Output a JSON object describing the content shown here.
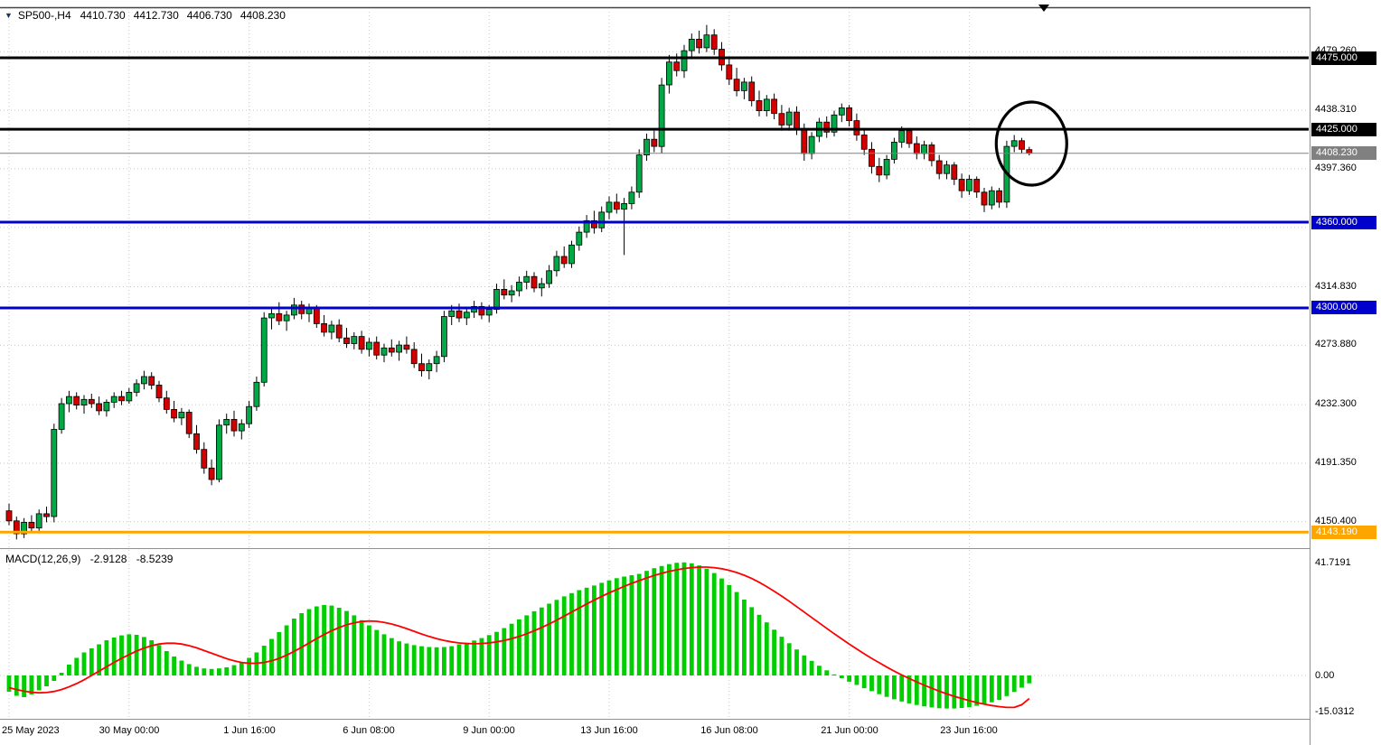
{
  "header": {
    "menu_icon": "▼",
    "symbol": "SP500-,H4",
    "open": "4410.730",
    "high": "4412.730",
    "low": "4406.730",
    "close": "4408.230"
  },
  "colors": {
    "up": "#00A846",
    "down": "#D40000",
    "wick": "#000000",
    "hist": "#00CE00",
    "signal": "#FF0000",
    "grid": "#C8C8C8",
    "current": "#808080",
    "separator": "#909090",
    "bg": "#FFFFFF"
  },
  "price_axis": {
    "ticks": [
      {
        "value": 4479.26,
        "label": "4479.260"
      },
      {
        "value": 4438.31,
        "label": "4438.310"
      },
      {
        "value": 4397.36,
        "label": "4397.360"
      },
      {
        "value": 4356.41,
        "label": ""
      },
      {
        "value": 4314.83,
        "label": "4314.830"
      },
      {
        "value": 4273.88,
        "label": "4273.880"
      },
      {
        "value": 4232.3,
        "label": "4232.300"
      },
      {
        "value": 4191.35,
        "label": "4191.350"
      },
      {
        "value": 4150.4,
        "label": "4150.400"
      }
    ],
    "badges": [
      {
        "value": 4475.0,
        "label": "4475.000",
        "bg": "#000000"
      },
      {
        "value": 4425.0,
        "label": "4425.000",
        "bg": "#000000"
      },
      {
        "value": 4408.23,
        "label": "4408.230",
        "bg": "#808080"
      },
      {
        "value": 4360.0,
        "label": "4360.000",
        "bg": "#0000CD"
      },
      {
        "value": 4300.0,
        "label": "4300.000",
        "bg": "#0000CD"
      },
      {
        "value": 4143.19,
        "label": "4143.190",
        "bg": "#FFA500"
      }
    ]
  },
  "macd_panel": {
    "label": "MACD(12,26,9)",
    "main_value": "-2.9128",
    "signal_value": "-8.5239",
    "axis": [
      {
        "value": 41.7191,
        "label": "41.7191"
      },
      {
        "value": 0,
        "label": "0.00"
      },
      {
        "value": -15.0312,
        "label": "-15.0312"
      }
    ]
  },
  "annotation": {
    "shape": "ellipse",
    "bar": 136.3,
    "price": 4415
  },
  "chart_data": {
    "type": "candlestick",
    "symbol": "SP500-",
    "timeframe": "H4",
    "price_range": [
      4136,
      4500
    ],
    "current_price": 4408.23,
    "hlines": [
      {
        "price": 4475.0,
        "color": "#000000",
        "width": 3
      },
      {
        "price": 4425.0,
        "color": "#000000",
        "width": 3
      },
      {
        "price": 4360.0,
        "color": "#0000CD",
        "width": 3
      },
      {
        "price": 4300.0,
        "color": "#0000CD",
        "width": 3
      },
      {
        "price": 4143.19,
        "color": "#FFA500",
        "width": 3
      }
    ],
    "time_labels": [
      {
        "bar": 0,
        "text": "25 May 2023"
      },
      {
        "bar": 16,
        "text": "30 May 00:00"
      },
      {
        "bar": 32,
        "text": "1 Jun 16:00"
      },
      {
        "bar": 48,
        "text": "6 Jun 08:00"
      },
      {
        "bar": 64,
        "text": "9 Jun 00:00"
      },
      {
        "bar": 80,
        "text": "13 Jun 16:00"
      },
      {
        "bar": 96,
        "text": "16 Jun 08:00"
      },
      {
        "bar": 112,
        "text": "21 Jun 00:00"
      },
      {
        "bar": 128,
        "text": "23 Jun 16:00"
      }
    ],
    "candles": [
      [
        4158,
        4163,
        4148,
        4151
      ],
      [
        4151,
        4154,
        4138,
        4142
      ],
      [
        4142,
        4153,
        4139,
        4150
      ],
      [
        4150,
        4155,
        4143,
        4146
      ],
      [
        4146,
        4159,
        4144,
        4156
      ],
      [
        4156,
        4161,
        4150,
        4154
      ],
      [
        4154,
        4219,
        4150,
        4215
      ],
      [
        4215,
        4237,
        4212,
        4233
      ],
      [
        4233,
        4242,
        4227,
        4238
      ],
      [
        4238,
        4241,
        4229,
        4232
      ],
      [
        4232,
        4239,
        4226,
        4236
      ],
      [
        4236,
        4240,
        4230,
        4233
      ],
      [
        4233,
        4238,
        4225,
        4228
      ],
      [
        4228,
        4236,
        4224,
        4234
      ],
      [
        4234,
        4241,
        4230,
        4238
      ],
      [
        4238,
        4242,
        4232,
        4235
      ],
      [
        4235,
        4244,
        4233,
        4241
      ],
      [
        4241,
        4250,
        4238,
        4247
      ],
      [
        4247,
        4256,
        4243,
        4252
      ],
      [
        4252,
        4255,
        4243,
        4246
      ],
      [
        4246,
        4249,
        4234,
        4237
      ],
      [
        4237,
        4242,
        4226,
        4229
      ],
      [
        4229,
        4235,
        4220,
        4223
      ],
      [
        4223,
        4230,
        4218,
        4227
      ],
      [
        4227,
        4229,
        4209,
        4212
      ],
      [
        4212,
        4218,
        4198,
        4201
      ],
      [
        4201,
        4206,
        4184,
        4188
      ],
      [
        4188,
        4194,
        4176,
        4180
      ],
      [
        4180,
        4222,
        4178,
        4218
      ],
      [
        4218,
        4226,
        4212,
        4222
      ],
      [
        4222,
        4228,
        4210,
        4214
      ],
      [
        4214,
        4222,
        4208,
        4219
      ],
      [
        4219,
        4235,
        4216,
        4231
      ],
      [
        4231,
        4252,
        4228,
        4248
      ],
      [
        4248,
        4297,
        4245,
        4293
      ],
      [
        4293,
        4300,
        4285,
        4296
      ],
      [
        4296,
        4304,
        4288,
        4291
      ],
      [
        4291,
        4298,
        4284,
        4295
      ],
      [
        4295,
        4307,
        4292,
        4302
      ],
      [
        4302,
        4305,
        4292,
        4296
      ],
      [
        4296,
        4303,
        4290,
        4300
      ],
      [
        4300,
        4302,
        4286,
        4289
      ],
      [
        4289,
        4295,
        4280,
        4283
      ],
      [
        4283,
        4291,
        4278,
        4288
      ],
      [
        4288,
        4292,
        4276,
        4279
      ],
      [
        4279,
        4286,
        4272,
        4275
      ],
      [
        4275,
        4283,
        4271,
        4280
      ],
      [
        4280,
        4284,
        4268,
        4271
      ],
      [
        4271,
        4279,
        4266,
        4276
      ],
      [
        4276,
        4280,
        4264,
        4267
      ],
      [
        4267,
        4275,
        4262,
        4272
      ],
      [
        4272,
        4278,
        4266,
        4269
      ],
      [
        4269,
        4277,
        4263,
        4274
      ],
      [
        4274,
        4280,
        4268,
        4271
      ],
      [
        4271,
        4276,
        4258,
        4261
      ],
      [
        4261,
        4268,
        4252,
        4256
      ],
      [
        4256,
        4264,
        4250,
        4261
      ],
      [
        4261,
        4270,
        4255,
        4266
      ],
      [
        4266,
        4298,
        4262,
        4294
      ],
      [
        4294,
        4302,
        4288,
        4298
      ],
      [
        4298,
        4303,
        4290,
        4293
      ],
      [
        4293,
        4300,
        4288,
        4297
      ],
      [
        4297,
        4305,
        4293,
        4301
      ],
      [
        4301,
        4304,
        4292,
        4295
      ],
      [
        4295,
        4302,
        4290,
        4299
      ],
      [
        4299,
        4317,
        4296,
        4313
      ],
      [
        4313,
        4320,
        4306,
        4309
      ],
      [
        4309,
        4316,
        4304,
        4312
      ],
      [
        4312,
        4322,
        4308,
        4318
      ],
      [
        4318,
        4326,
        4313,
        4322
      ],
      [
        4322,
        4325,
        4311,
        4314
      ],
      [
        4314,
        4321,
        4308,
        4317
      ],
      [
        4317,
        4330,
        4314,
        4326
      ],
      [
        4326,
        4340,
        4322,
        4336
      ],
      [
        4336,
        4343,
        4328,
        4331
      ],
      [
        4331,
        4347,
        4328,
        4344
      ],
      [
        4344,
        4357,
        4340,
        4353
      ],
      [
        4353,
        4365,
        4349,
        4361
      ],
      [
        4361,
        4368,
        4352,
        4356
      ],
      [
        4356,
        4371,
        4353,
        4367
      ],
      [
        4367,
        4378,
        4362,
        4374
      ],
      [
        4374,
        4380,
        4366,
        4369
      ],
      [
        4369,
        4377,
        4337,
        4373
      ],
      [
        4373,
        4385,
        4369,
        4381
      ],
      [
        4381,
        4411,
        4377,
        4407
      ],
      [
        4407,
        4422,
        4403,
        4418
      ],
      [
        4418,
        4424,
        4409,
        4413
      ],
      [
        4413,
        4461,
        4408,
        4456
      ],
      [
        4456,
        4477,
        4450,
        4472
      ],
      [
        4472,
        4478,
        4462,
        4466
      ],
      [
        4466,
        4484,
        4461,
        4480
      ],
      [
        4480,
        4492,
        4474,
        4488
      ],
      [
        4488,
        4494,
        4478,
        4482
      ],
      [
        4482,
        4498,
        4479,
        4491
      ],
      [
        4491,
        4495,
        4477,
        4481
      ],
      [
        4481,
        4486,
        4466,
        4470
      ],
      [
        4470,
        4476,
        4456,
        4460
      ],
      [
        4460,
        4468,
        4448,
        4452
      ],
      [
        4452,
        4461,
        4446,
        4458
      ],
      [
        4458,
        4462,
        4441,
        4445
      ],
      [
        4445,
        4452,
        4434,
        4438
      ],
      [
        4438,
        4449,
        4434,
        4446
      ],
      [
        4446,
        4450,
        4432,
        4436
      ],
      [
        4436,
        4442,
        4424,
        4428
      ],
      [
        4428,
        4440,
        4424,
        4437
      ],
      [
        4437,
        4441,
        4421,
        4425
      ],
      [
        4425,
        4429,
        4403,
        4408
      ],
      [
        4408,
        4423,
        4404,
        4420
      ],
      [
        4420,
        4433,
        4416,
        4430
      ],
      [
        4430,
        4434,
        4419,
        4423
      ],
      [
        4423,
        4438,
        4420,
        4435
      ],
      [
        4435,
        4443,
        4430,
        4440
      ],
      [
        4440,
        4442,
        4427,
        4431
      ],
      [
        4431,
        4436,
        4417,
        4421
      ],
      [
        4421,
        4426,
        4407,
        4411
      ],
      [
        4411,
        4416,
        4394,
        4399
      ],
      [
        4399,
        4405,
        4388,
        4393
      ],
      [
        4393,
        4407,
        4390,
        4404
      ],
      [
        4404,
        4419,
        4401,
        4416
      ],
      [
        4416,
        4427,
        4412,
        4424
      ],
      [
        4424,
        4426,
        4412,
        4415
      ],
      [
        4415,
        4420,
        4404,
        4408
      ],
      [
        4408,
        4417,
        4404,
        4414
      ],
      [
        4414,
        4416,
        4399,
        4403
      ],
      [
        4403,
        4407,
        4390,
        4394
      ],
      [
        4394,
        4403,
        4390,
        4400
      ],
      [
        4400,
        4402,
        4386,
        4390
      ],
      [
        4390,
        4394,
        4377,
        4382
      ],
      [
        4382,
        4393,
        4379,
        4390
      ],
      [
        4390,
        4392,
        4377,
        4381
      ],
      [
        4381,
        4384,
        4367,
        4372
      ],
      [
        4372,
        4385,
        4369,
        4382
      ],
      [
        4382,
        4384,
        4370,
        4374
      ],
      [
        4374,
        4417,
        4370,
        4413
      ],
      [
        4413,
        4421,
        4409,
        4417
      ],
      [
        4417,
        4419,
        4408,
        4411
      ],
      [
        4410.73,
        4412.73,
        4406.73,
        4408.23
      ]
    ],
    "macd": {
      "params": "12,26,9",
      "range": [
        -15.0312,
        41.7191
      ],
      "histogram": [
        -6,
        -7.5,
        -8,
        -7,
        -5.5,
        -4,
        -2,
        1,
        4,
        6.5,
        8.5,
        10,
        11.5,
        13,
        14,
        14.8,
        15.2,
        15,
        14.2,
        13,
        11.2,
        9,
        7,
        5.5,
        4.2,
        3.2,
        2.6,
        2.4,
        2.6,
        3,
        3.8,
        5,
        6.5,
        8.5,
        11,
        13.5,
        16,
        18.5,
        21,
        23,
        24.5,
        25.5,
        26,
        25.8,
        25,
        23.8,
        22.2,
        20.4,
        18.5,
        16.8,
        15.2,
        13.8,
        12.6,
        11.8,
        11.2,
        10.8,
        10.5,
        10.4,
        10.5,
        10.8,
        11.5,
        12.1,
        12.9,
        13.8,
        14.9,
        16.1,
        17.5,
        19.1,
        20.7,
        22.2,
        23.7,
        25.1,
        26.5,
        27.9,
        29.2,
        30.4,
        31.5,
        32.4,
        33.2,
        34.2,
        35.1,
        35.9,
        36.5,
        37,
        37.5,
        38.6,
        39.6,
        40.4,
        41.1,
        41.6,
        41.72,
        41.4,
        40.6,
        39.4,
        37.8,
        35.8,
        33.4,
        30.8,
        28,
        25.2,
        22.4,
        19.6,
        16.9,
        14.3,
        11.9,
        9.6,
        7.4,
        5.4,
        3.6,
        1.9,
        0.4,
        -1,
        -2.3,
        -3.5,
        -4.7,
        -5.8,
        -6.9,
        -7.9,
        -8.8,
        -9.6,
        -10.3,
        -10.9,
        -11.4,
        -11.8,
        -12.1,
        -12.2,
        -12.2,
        -12,
        -11.7,
        -11.2,
        -10.6,
        -9.9,
        -9,
        -7.6,
        -6.1,
        -4.5,
        -2.91
      ],
      "signal": [
        -4.5,
        -5.2,
        -5.8,
        -6.2,
        -6.4,
        -6.3,
        -5.9,
        -5.2,
        -4.2,
        -3,
        -1.6,
        0,
        1.6,
        3.2,
        4.8,
        6.3,
        7.7,
        9,
        10.1,
        11,
        11.6,
        11.9,
        11.9,
        11.6,
        11,
        10.2,
        9.2,
        8.2,
        7.2,
        6.2,
        5.4,
        4.8,
        4.5,
        4.5,
        4.8,
        5.4,
        6.3,
        7.5,
        8.9,
        10.4,
        12,
        13.6,
        15.1,
        16.5,
        17.7,
        18.7,
        19.4,
        19.9,
        20.1,
        20,
        19.6,
        19,
        18.2,
        17.3,
        16.3,
        15.3,
        14.4,
        13.6,
        12.9,
        12.4,
        12,
        11.8,
        11.7,
        11.8,
        12,
        12.4,
        12.9,
        13.6,
        14.4,
        15.4,
        16.5,
        17.7,
        19,
        20.4,
        21.9,
        23.4,
        24.9,
        26.4,
        27.8,
        29.2,
        30.5,
        31.7,
        32.9,
        34,
        35,
        36,
        36.9,
        37.7,
        38.4,
        39,
        39.5,
        39.8,
        40,
        40,
        39.8,
        39.4,
        38.8,
        38,
        37,
        35.8,
        34.4,
        32.8,
        31.1,
        29.3,
        27.4,
        25.4,
        23.4,
        21.4,
        19.4,
        17.4,
        15.4,
        13.5,
        11.6,
        9.8,
        8,
        6.3,
        4.7,
        3.1,
        1.6,
        0.2,
        -1.1,
        -2.4,
        -3.6,
        -4.7,
        -5.8,
        -6.8,
        -7.7,
        -8.5,
        -9.3,
        -10,
        -10.6,
        -11.1,
        -11.5,
        -11.8,
        -11.8,
        -10.8,
        -8.52
      ]
    }
  }
}
